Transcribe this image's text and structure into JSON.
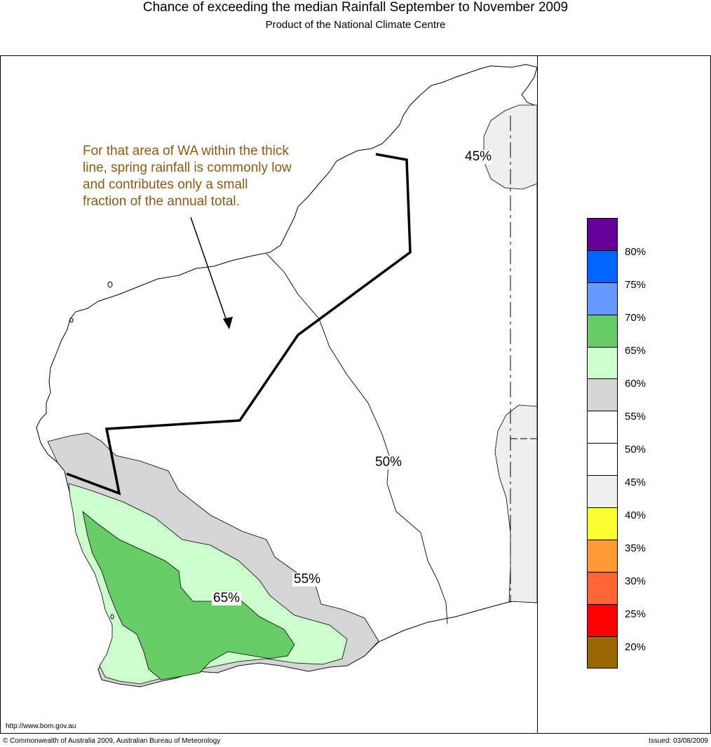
{
  "header": {
    "title": "Chance of exceeding the median Rainfall September to November 2009",
    "subtitle": "Product of the National Climate Centre"
  },
  "map": {
    "annotation": "For that area of WA within the thick line, spring rainfall is commonly low and contributes only a small fraction of the annual total.",
    "contour_labels": [
      "45%",
      "50%",
      "55%",
      "65%"
    ],
    "colors": {
      "band_40_45": "#efefef",
      "band_55_60": "#d5d5d5",
      "band_60_65": "#ccffcc",
      "band_65_70": "#66cc66",
      "annotation_text": "#8a5a16"
    }
  },
  "legend": {
    "swatches": [
      {
        "color": "#660099"
      },
      {
        "color": "#0066ff"
      },
      {
        "color": "#6699ff"
      },
      {
        "color": "#66cc66"
      },
      {
        "color": "#ccffcc"
      },
      {
        "color": "#d5d5d5"
      },
      {
        "color": "#ffffff"
      },
      {
        "color": "#ffffff"
      },
      {
        "color": "#efefef"
      },
      {
        "color": "#ffff33"
      },
      {
        "color": "#ff9933"
      },
      {
        "color": "#ff6633"
      },
      {
        "color": "#ff0000"
      },
      {
        "color": "#996600"
      }
    ],
    "labels": [
      "80%",
      "75%",
      "70%",
      "65%",
      "60%",
      "55%",
      "50%",
      "45%",
      "40%",
      "35%",
      "30%",
      "25%",
      "20%"
    ]
  },
  "footer": {
    "url": "http://www.bom.gov.au",
    "copyright": "© Commonwealth of Australia 2009, Australian Bureau of Meteorology",
    "issued": "Issued: 03/08/2009"
  }
}
